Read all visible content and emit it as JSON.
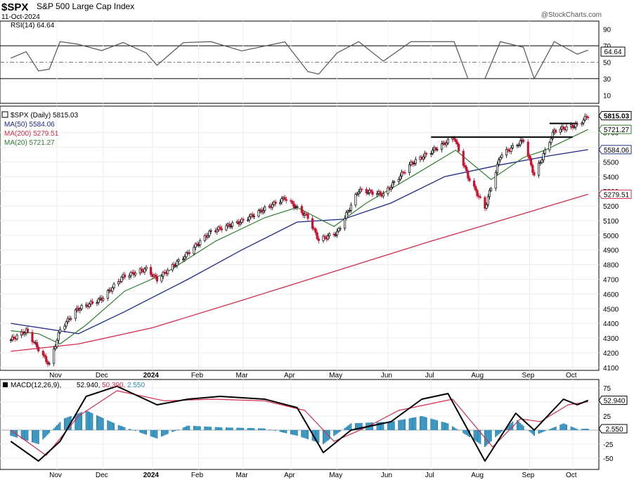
{
  "header": {
    "symbol": "$SPX",
    "name": "S&P 500 Large Cap Index",
    "date": "11-Oct-2024",
    "watermark": "@StockCharts.com"
  },
  "chart_data": [
    {
      "type": "line",
      "panel": "rsi",
      "legend": "RSI(14) 64.64",
      "current_label": "64.64",
      "current": 64.64,
      "ylim": [
        0,
        100
      ],
      "yticks": [
        10,
        30,
        50,
        70,
        90
      ],
      "reference_lines": [
        30,
        50,
        70
      ],
      "colors": {
        "line": "#555555",
        "fill": "#3d7a3d"
      }
    },
    {
      "type": "candlestick",
      "panel": "price",
      "legend": [
        {
          "label": "$SPX (Daily) 5815.03",
          "color": "#000000"
        },
        {
          "label": "MA(50) 5584.06",
          "color": "#1f2a8a"
        },
        {
          "label": "MA(200) 5279.51",
          "color": "#d42b4a"
        },
        {
          "label": "MA(20) 5721.27",
          "color": "#2e7d2e"
        }
      ],
      "last_values": [
        {
          "label": "5815.03",
          "value": 5815.03,
          "color": "#000000",
          "bold": true
        },
        {
          "label": "5721.27",
          "value": 5721.27,
          "color": "#2e7d2e",
          "bold": false
        },
        {
          "label": "5584.06",
          "value": 5584.06,
          "color": "#1f2a8a",
          "bold": false
        },
        {
          "label": "5279.51",
          "value": 5279.51,
          "color": "#d42b4a",
          "bold": false
        }
      ],
      "ylim": [
        4080,
        5880
      ],
      "yticks": [
        4100,
        4200,
        4300,
        4400,
        4500,
        4600,
        4700,
        4800,
        4900,
        5000,
        5100,
        5200,
        5300,
        5400,
        5500,
        5600,
        5700
      ],
      "close_path": [
        [
          "2023-10-02",
          4288
        ],
        [
          "2023-10-12",
          4350
        ],
        [
          "2023-10-20",
          4225
        ],
        [
          "2023-10-27",
          4117
        ],
        [
          "2023-11-03",
          4358
        ],
        [
          "2023-11-14",
          4495
        ],
        [
          "2023-11-30",
          4568
        ],
        [
          "2023-12-14",
          4720
        ],
        [
          "2023-12-29",
          4770
        ],
        [
          "2024-01-05",
          4700
        ],
        [
          "2024-01-22",
          4850
        ],
        [
          "2024-02-09",
          5026
        ],
        [
          "2024-02-29",
          5096
        ],
        [
          "2024-03-28",
          5254
        ],
        [
          "2024-04-12",
          5123
        ],
        [
          "2024-04-19",
          4967
        ],
        [
          "2024-05-01",
          5018
        ],
        [
          "2024-05-15",
          5308
        ],
        [
          "2024-05-31",
          5278
        ],
        [
          "2024-06-18",
          5487
        ],
        [
          "2024-07-16",
          5667
        ],
        [
          "2024-07-25",
          5399
        ],
        [
          "2024-08-05",
          5186
        ],
        [
          "2024-08-15",
          5543
        ],
        [
          "2024-08-30",
          5648
        ],
        [
          "2024-09-06",
          5408
        ],
        [
          "2024-09-19",
          5713
        ],
        [
          "2024-10-04",
          5751
        ],
        [
          "2024-10-11",
          5815
        ]
      ],
      "ma20_path": [
        [
          "2023-10-02",
          4350
        ],
        [
          "2023-10-20",
          4330
        ],
        [
          "2023-11-03",
          4260
        ],
        [
          "2023-11-20",
          4390
        ],
        [
          "2023-12-15",
          4620
        ],
        [
          "2024-01-10",
          4740
        ],
        [
          "2024-02-12",
          4960
        ],
        [
          "2024-03-15",
          5120
        ],
        [
          "2024-04-05",
          5190
        ],
        [
          "2024-04-29",
          5060
        ],
        [
          "2024-05-20",
          5220
        ],
        [
          "2024-06-20",
          5410
        ],
        [
          "2024-07-17",
          5580
        ],
        [
          "2024-08-09",
          5380
        ],
        [
          "2024-08-30",
          5530
        ],
        [
          "2024-09-13",
          5580
        ],
        [
          "2024-10-11",
          5721
        ]
      ],
      "ma50_path": [
        [
          "2023-10-02",
          4400
        ],
        [
          "2023-11-15",
          4330
        ],
        [
          "2023-12-15",
          4480
        ],
        [
          "2024-01-25",
          4700
        ],
        [
          "2024-02-29",
          4900
        ],
        [
          "2024-04-05",
          5090
        ],
        [
          "2024-05-05",
          5110
        ],
        [
          "2024-06-05",
          5220
        ],
        [
          "2024-07-10",
          5400
        ],
        [
          "2024-08-15",
          5480
        ],
        [
          "2024-09-15",
          5540
        ],
        [
          "2024-10-11",
          5584
        ]
      ],
      "ma200_path": [
        [
          "2023-10-02",
          4210
        ],
        [
          "2023-11-15",
          4260
        ],
        [
          "2024-01-02",
          4370
        ],
        [
          "2024-03-01",
          4560
        ],
        [
          "2024-05-01",
          4760
        ],
        [
          "2024-07-01",
          4960
        ],
        [
          "2024-08-15",
          5100
        ],
        [
          "2024-10-11",
          5280
        ]
      ],
      "resistance_lines": [
        {
          "from": "2024-07-01",
          "to": "2024-10-01",
          "value": 5669
        },
        {
          "from": "2024-09-16",
          "to": "2024-10-04",
          "value": 5762
        }
      ],
      "x_ticks": [
        {
          "date": "2023-11-01",
          "label": "Nov",
          "bold": false
        },
        {
          "date": "2023-12-01",
          "label": "Dec",
          "bold": false
        },
        {
          "date": "2024-01-02",
          "label": "2024",
          "bold": true
        },
        {
          "date": "2024-02-01",
          "label": "Feb",
          "bold": false
        },
        {
          "date": "2024-03-01",
          "label": "Mar",
          "bold": false
        },
        {
          "date": "2024-04-01",
          "label": "Apr",
          "bold": false
        },
        {
          "date": "2024-05-01",
          "label": "May",
          "bold": false
        },
        {
          "date": "2024-06-03",
          "label": "Jun",
          "bold": false
        },
        {
          "date": "2024-07-01",
          "label": "Jul",
          "bold": false
        },
        {
          "date": "2024-08-01",
          "label": "Aug",
          "bold": false
        },
        {
          "date": "2024-09-03",
          "label": "Sep",
          "bold": false
        },
        {
          "date": "2024-10-01",
          "label": "Oct",
          "bold": false
        }
      ],
      "colors": {
        "up": "#000000",
        "down": "#c8102e"
      }
    },
    {
      "type": "line",
      "panel": "macd",
      "legend": [
        {
          "label": "MACD(12,26,9)",
          "color": "#000000"
        },
        {
          "label": "52.940",
          "color": "#000000"
        },
        {
          "label": "50.390",
          "color": "#d42b4a"
        },
        {
          "label": "2.550",
          "color": "#2a8ab8"
        }
      ],
      "last_values": [
        {
          "label": "52.940",
          "value": 52.94
        },
        {
          "label": "2.550",
          "value": 2.55
        }
      ],
      "ylim": [
        -70,
        90
      ],
      "yticks": [
        -50,
        -25,
        25,
        50,
        75
      ],
      "macd_path": [
        [
          "2023-10-02",
          -20
        ],
        [
          "2023-10-20",
          -55
        ],
        [
          "2023-11-03",
          -20
        ],
        [
          "2023-11-20",
          60
        ],
        [
          "2023-12-10",
          78
        ],
        [
          "2024-01-05",
          45
        ],
        [
          "2024-01-25",
          55
        ],
        [
          "2024-02-15",
          60
        ],
        [
          "2024-03-15",
          55
        ],
        [
          "2024-04-05",
          40
        ],
        [
          "2024-04-22",
          -40
        ],
        [
          "2024-05-10",
          0
        ],
        [
          "2024-06-05",
          15
        ],
        [
          "2024-06-25",
          55
        ],
        [
          "2024-07-12",
          65
        ],
        [
          "2024-08-05",
          -55
        ],
        [
          "2024-08-25",
          30
        ],
        [
          "2024-09-06",
          0
        ],
        [
          "2024-09-25",
          55
        ],
        [
          "2024-10-04",
          45
        ],
        [
          "2024-10-11",
          52.94
        ]
      ],
      "signal_path": [
        [
          "2023-10-02",
          0
        ],
        [
          "2023-10-25",
          -45
        ],
        [
          "2023-11-15",
          25
        ],
        [
          "2023-12-10",
          70
        ],
        [
          "2024-01-10",
          52
        ],
        [
          "2024-02-10",
          55
        ],
        [
          "2024-03-15",
          52
        ],
        [
          "2024-04-10",
          35
        ],
        [
          "2024-04-29",
          -20
        ],
        [
          "2024-05-20",
          5
        ],
        [
          "2024-06-10",
          35
        ],
        [
          "2024-07-15",
          55
        ],
        [
          "2024-08-10",
          -30
        ],
        [
          "2024-08-28",
          20
        ],
        [
          "2024-09-10",
          15
        ],
        [
          "2024-09-28",
          45
        ],
        [
          "2024-10-11",
          50.39
        ]
      ],
      "histogram_path": [
        [
          "2023-10-02",
          -10
        ],
        [
          "2023-10-20",
          -25
        ],
        [
          "2023-11-05",
          20
        ],
        [
          "2023-11-20",
          35
        ],
        [
          "2023-12-10",
          10
        ],
        [
          "2024-01-05",
          -15
        ],
        [
          "2024-01-25",
          8
        ],
        [
          "2024-02-15",
          5
        ],
        [
          "2024-03-15",
          3
        ],
        [
          "2024-04-05",
          -10
        ],
        [
          "2024-04-22",
          -25
        ],
        [
          "2024-05-10",
          12
        ],
        [
          "2024-06-05",
          15
        ],
        [
          "2024-06-25",
          25
        ],
        [
          "2024-07-12",
          12
        ],
        [
          "2024-08-05",
          -30
        ],
        [
          "2024-08-25",
          20
        ],
        [
          "2024-09-06",
          -10
        ],
        [
          "2024-09-25",
          12
        ],
        [
          "2024-10-04",
          2
        ],
        [
          "2024-10-11",
          2.55
        ]
      ],
      "colors": {
        "macd": "#000000",
        "signal": "#d42b4a",
        "histogram": "#2a8ab8"
      }
    }
  ]
}
